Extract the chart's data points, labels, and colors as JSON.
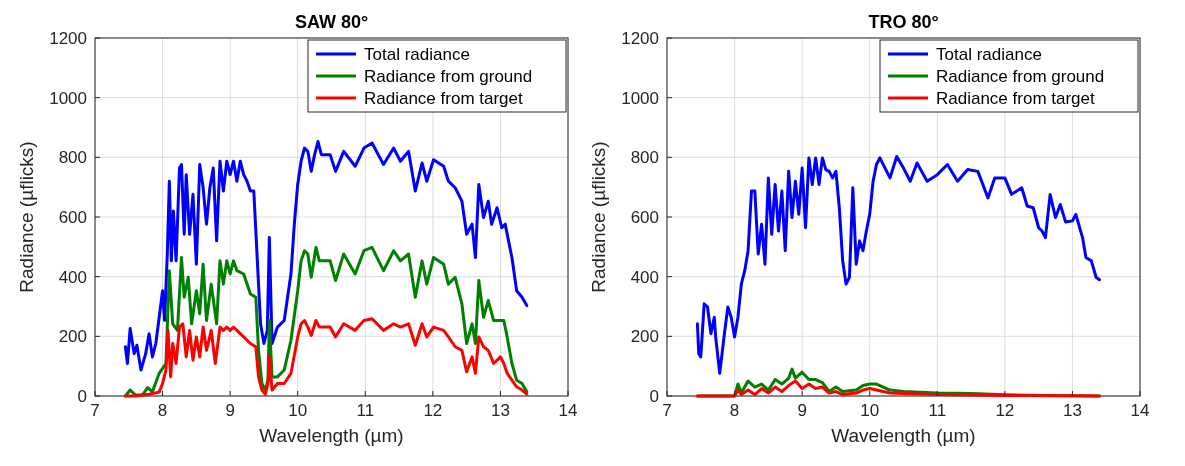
{
  "chart_data": [
    {
      "type": "line",
      "title": "SAW 80°",
      "xlabel": "Wavelength (µm)",
      "ylabel": "Radiance (µflicks)",
      "xlim": [
        7,
        14
      ],
      "xticks": [
        7,
        8,
        9,
        10,
        11,
        12,
        13,
        14
      ],
      "ylim": [
        0,
        1200
      ],
      "yticks": [
        0,
        200,
        400,
        600,
        800,
        1000,
        1200
      ],
      "grid": true,
      "legend": "top right",
      "line_style": "solid",
      "marker": "none",
      "series": [
        {
          "name": "Total radiance",
          "color": "#0000ff",
          "x": [
            7.45,
            7.48,
            7.52,
            7.58,
            7.62,
            7.68,
            7.75,
            7.8,
            7.85,
            7.9,
            7.95,
            8.0,
            8.03,
            8.07,
            8.1,
            8.13,
            8.16,
            8.2,
            8.25,
            8.28,
            8.32,
            8.35,
            8.4,
            8.45,
            8.5,
            8.55,
            8.6,
            8.65,
            8.7,
            8.75,
            8.8,
            8.85,
            8.9,
            8.95,
            9.0,
            9.05,
            9.1,
            9.15,
            9.2,
            9.25,
            9.3,
            9.35,
            9.4,
            9.45,
            9.5,
            9.55,
            9.58,
            9.62,
            9.7,
            9.8,
            9.9,
            9.95,
            10.0,
            10.05,
            10.1,
            10.15,
            10.2,
            10.25,
            10.3,
            10.35,
            10.48,
            10.56,
            10.68,
            10.85,
            10.98,
            11.1,
            11.27,
            11.42,
            11.52,
            11.64,
            11.74,
            11.84,
            11.91,
            12.01,
            12.16,
            12.23,
            12.33,
            12.43,
            12.5,
            12.58,
            12.63,
            12.68,
            12.75,
            12.82,
            12.87,
            12.95,
            13.02,
            13.07,
            13.17,
            13.24,
            13.32,
            13.39
          ],
          "values": [
            165,
            109,
            226,
            142,
            170,
            87,
            142,
            209,
            131,
            176,
            264,
            353,
            253,
            476,
            720,
            453,
            620,
            453,
            764,
            776,
            542,
            742,
            542,
            676,
            442,
            776,
            698,
            576,
            698,
            764,
            520,
            787,
            687,
            787,
            742,
            787,
            720,
            787,
            742,
            720,
            687,
            687,
            464,
            242,
            176,
            220,
            531,
            176,
            231,
            253,
            409,
            576,
            709,
            787,
            831,
            820,
            753,
            809,
            853,
            809,
            809,
            753,
            820,
            770,
            831,
            848,
            776,
            831,
            787,
            820,
            687,
            781,
            720,
            792,
            770,
            720,
            698,
            653,
            542,
            576,
            464,
            709,
            598,
            653,
            576,
            631,
            564,
            576,
            464,
            353,
            331,
            303
          ]
        },
        {
          "name": "Radiance from ground",
          "color": "#008000",
          "x": [
            7.45,
            7.52,
            7.6,
            7.7,
            7.78,
            7.85,
            7.95,
            8.05,
            8.1,
            8.15,
            8.22,
            8.28,
            8.32,
            8.38,
            8.43,
            8.5,
            8.55,
            8.6,
            8.65,
            8.72,
            8.8,
            8.85,
            8.9,
            8.95,
            9.0,
            9.05,
            9.1,
            9.2,
            9.3,
            9.38,
            9.42,
            9.47,
            9.52,
            9.56,
            9.58,
            9.62,
            9.7,
            9.8,
            9.9,
            10.0,
            10.05,
            10.1,
            10.15,
            10.2,
            10.27,
            10.32,
            10.48,
            10.56,
            10.68,
            10.85,
            10.98,
            11.1,
            11.27,
            11.42,
            11.52,
            11.64,
            11.74,
            11.84,
            11.91,
            12.01,
            12.16,
            12.23,
            12.33,
            12.43,
            12.5,
            12.58,
            12.63,
            12.68,
            12.75,
            12.82,
            12.9,
            13.0,
            13.05,
            13.1,
            13.17,
            13.24,
            13.32,
            13.39
          ],
          "values": [
            0,
            20,
            3,
            3,
            28,
            14,
            76,
            109,
            420,
            242,
            220,
            464,
            331,
            398,
            242,
            353,
            276,
            442,
            253,
            375,
            242,
            453,
            375,
            453,
            409,
            453,
            420,
            409,
            342,
            331,
            153,
            42,
            20,
            53,
            253,
            64,
            64,
            87,
            187,
            353,
            453,
            487,
            476,
            398,
            498,
            453,
            453,
            387,
            476,
            409,
            487,
            498,
            420,
            487,
            453,
            476,
            331,
            453,
            375,
            464,
            442,
            375,
            398,
            309,
            176,
            242,
            176,
            387,
            264,
            320,
            253,
            253,
            253,
            198,
            109,
            53,
            42,
            14
          ]
        },
        {
          "name": "Radiance from target",
          "color": "#ff0000",
          "x": [
            7.45,
            7.6,
            7.8,
            7.95,
            8.0,
            8.05,
            8.08,
            8.12,
            8.15,
            8.2,
            8.25,
            8.3,
            8.35,
            8.4,
            8.45,
            8.5,
            8.55,
            8.6,
            8.65,
            8.72,
            8.78,
            8.85,
            8.9,
            8.95,
            9.0,
            9.05,
            9.1,
            9.2,
            9.3,
            9.38,
            9.42,
            9.47,
            9.52,
            9.56,
            9.58,
            9.62,
            9.7,
            9.8,
            9.9,
            10.0,
            10.05,
            10.1,
            10.15,
            10.2,
            10.27,
            10.32,
            10.48,
            10.56,
            10.68,
            10.85,
            10.98,
            11.1,
            11.27,
            11.42,
            11.52,
            11.64,
            11.74,
            11.84,
            11.91,
            12.01,
            12.16,
            12.23,
            12.33,
            12.43,
            12.5,
            12.58,
            12.63,
            12.68,
            12.75,
            12.82,
            12.9,
            13.0,
            13.05,
            13.1,
            13.17,
            13.24,
            13.32,
            13.39
          ],
          "values": [
            0,
            0,
            6,
            13,
            42,
            87,
            220,
            64,
            176,
            109,
            231,
            242,
            131,
            220,
            120,
            198,
            131,
            231,
            153,
            220,
            109,
            231,
            220,
            231,
            220,
            231,
            220,
            198,
            176,
            165,
            64,
            20,
            6,
            42,
            131,
            20,
            42,
            42,
            76,
            198,
            242,
            253,
            231,
            203,
            253,
            231,
            231,
            198,
            242,
            220,
            253,
            259,
            220,
            242,
            231,
            242,
            170,
            242,
            198,
            231,
            220,
            198,
            165,
            153,
            81,
            131,
            76,
            198,
            165,
            153,
            109,
            131,
            109,
            76,
            53,
            31,
            20,
            6
          ]
        }
      ]
    },
    {
      "type": "line",
      "title": "TRO 80°",
      "xlabel": "Wavelength (µm)",
      "ylabel": "Radiance (µflicks)",
      "xlim": [
        7,
        14
      ],
      "xticks": [
        7,
        8,
        9,
        10,
        11,
        12,
        13,
        14
      ],
      "ylim": [
        0,
        1200
      ],
      "yticks": [
        0,
        200,
        400,
        600,
        800,
        1000,
        1200
      ],
      "grid": true,
      "legend": "top right",
      "line_style": "solid",
      "marker": "none",
      "series": [
        {
          "name": "Total radiance",
          "color": "#0000ff",
          "x": [
            7.45,
            7.47,
            7.5,
            7.55,
            7.6,
            7.65,
            7.7,
            7.72,
            7.78,
            7.85,
            7.9,
            7.95,
            8.0,
            8.05,
            8.1,
            8.15,
            8.2,
            8.25,
            8.3,
            8.35,
            8.4,
            8.45,
            8.5,
            8.55,
            8.6,
            8.65,
            8.7,
            8.75,
            8.8,
            8.85,
            8.9,
            8.95,
            9.0,
            9.05,
            9.1,
            9.15,
            9.2,
            9.25,
            9.3,
            9.35,
            9.4,
            9.45,
            9.5,
            9.55,
            9.6,
            9.65,
            9.7,
            9.75,
            9.8,
            9.85,
            9.9,
            9.95,
            10.0,
            10.05,
            10.1,
            10.15,
            10.3,
            10.4,
            10.5,
            10.6,
            10.7,
            10.85,
            11.0,
            11.15,
            11.3,
            11.45,
            11.6,
            11.75,
            11.85,
            12.0,
            12.1,
            12.25,
            12.33,
            12.42,
            12.5,
            12.55,
            12.6,
            12.67,
            12.75,
            12.82,
            12.9,
            13.0,
            13.05,
            13.15,
            13.2,
            13.28,
            13.35,
            13.4
          ],
          "values": [
            242,
            142,
            131,
            309,
            298,
            209,
            264,
            198,
            76,
            209,
            298,
            264,
            198,
            264,
            375,
            420,
            487,
            687,
            687,
            476,
            576,
            442,
            731,
            542,
            709,
            553,
            687,
            487,
            753,
            598,
            720,
            609,
            764,
            564,
            798,
            709,
            798,
            709,
            798,
            759,
            753,
            731,
            753,
            631,
            453,
            375,
            398,
            698,
            442,
            520,
            487,
            553,
            609,
            720,
            776,
            798,
            731,
            803,
            764,
            720,
            781,
            720,
            742,
            776,
            720,
            759,
            753,
            664,
            731,
            731,
            676,
            698,
            637,
            631,
            564,
            553,
            531,
            675,
            598,
            642,
            583,
            587,
            609,
            531,
            464,
            453,
            398,
            390
          ]
        },
        {
          "name": "Radiance from ground",
          "color": "#008000",
          "x": [
            7.45,
            8.0,
            8.05,
            8.1,
            8.2,
            8.3,
            8.4,
            8.5,
            8.6,
            8.7,
            8.8,
            8.85,
            8.9,
            9.0,
            9.1,
            9.2,
            9.3,
            9.4,
            9.5,
            9.6,
            9.8,
            9.9,
            10.0,
            10.1,
            10.3,
            10.5,
            11.0,
            11.5,
            12.0,
            12.5,
            13.0,
            13.4
          ],
          "values": [
            0,
            0,
            40,
            10,
            50,
            30,
            40,
            20,
            55,
            40,
            60,
            90,
            60,
            80,
            55,
            55,
            45,
            15,
            30,
            15,
            20,
            35,
            40,
            40,
            20,
            15,
            10,
            8,
            4,
            2,
            1,
            0
          ]
        },
        {
          "name": "Radiance from target",
          "color": "#ff0000",
          "x": [
            7.45,
            8.0,
            8.05,
            8.1,
            8.2,
            8.3,
            8.4,
            8.5,
            8.6,
            8.7,
            8.8,
            8.9,
            9.0,
            9.1,
            9.2,
            9.3,
            9.4,
            9.5,
            9.6,
            9.8,
            9.9,
            10.0,
            10.1,
            10.3,
            10.5,
            11.0,
            11.5,
            12.0,
            13.0,
            13.4
          ],
          "values": [
            0,
            0,
            20,
            5,
            20,
            5,
            25,
            10,
            30,
            15,
            35,
            50,
            25,
            40,
            25,
            30,
            10,
            15,
            5,
            10,
            20,
            25,
            20,
            10,
            8,
            5,
            3,
            2,
            1,
            0
          ]
        }
      ]
    }
  ]
}
